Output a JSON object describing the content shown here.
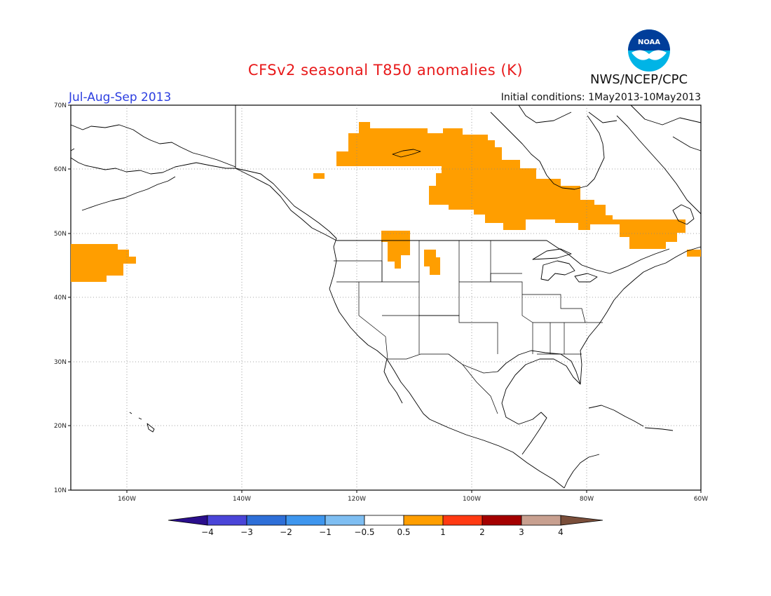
{
  "title": "CFSv2 seasonal T850 anomalies (K)",
  "period": "Jul-Aug-Sep 2013",
  "initial_conditions": "Initial conditions: 1May2013-10May2013",
  "agency": "NWS/NCEP/CPC",
  "logo_text": "NOAA",
  "lat_labels": [
    "70N",
    "60N",
    "50N",
    "40N",
    "30N",
    "20N",
    "10N"
  ],
  "lon_labels": [
    "160W",
    "140W",
    "120W",
    "100W",
    "80W",
    "60W"
  ],
  "colorbar": {
    "ticks": [
      "−4",
      "−3",
      "−2",
      "−1",
      "−0.5",
      "0.5",
      "1",
      "2",
      "3",
      "4"
    ],
    "colors": [
      "#2a0e8c",
      "#4a45d8",
      "#2e6fd8",
      "#3e96ee",
      "#7ebef2",
      "#ffffff",
      "#ff9e00",
      "#ff3a12",
      "#a40000",
      "#c8a090",
      "#7a4e3a"
    ]
  },
  "anomaly_color": "#ff9e00"
}
